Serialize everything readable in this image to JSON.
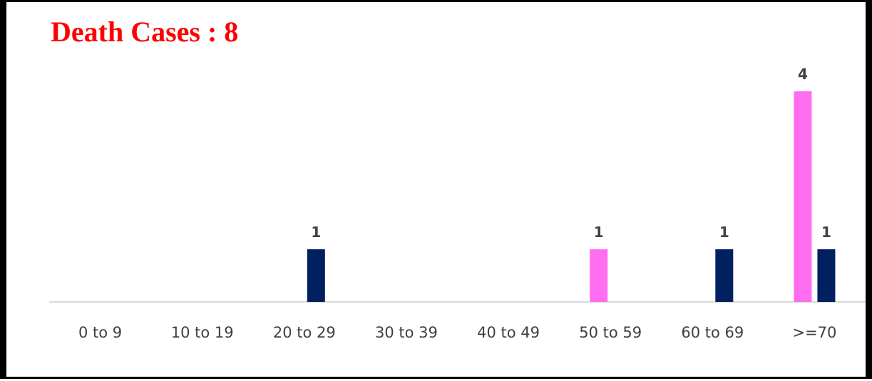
{
  "chart_data": {
    "type": "bar",
    "title": "Death Cases : 8",
    "categories": [
      "0 to 9",
      "10 to 19",
      "20 to 29",
      "30 to 39",
      "40 to 49",
      "50 to 59",
      "60 to 69",
      ">=70"
    ],
    "series": [
      {
        "color": "#ff6ef0",
        "values": [
          0,
          0,
          0,
          0,
          0,
          1,
          0,
          4
        ]
      },
      {
        "color": "#002060",
        "values": [
          0,
          0,
          1,
          0,
          0,
          0,
          1,
          1
        ]
      }
    ],
    "data_labels": "non-zero values above bars",
    "ylim": [
      0,
      4.3
    ],
    "grid": false,
    "legend": "none"
  }
}
